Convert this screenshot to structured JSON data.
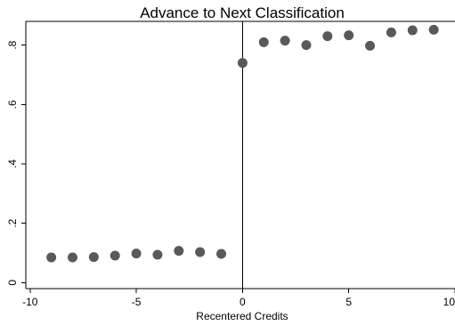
{
  "chart_data": {
    "type": "scatter",
    "title": "Advance to Next Classification",
    "xlabel": "Recentered Credits",
    "ylabel": "",
    "xlim": [
      -10.2,
      10
    ],
    "ylim": [
      -0.02,
      0.88
    ],
    "x_ticks": [
      {
        "value": -10,
        "label": "-10"
      },
      {
        "value": -5,
        "label": "-5"
      },
      {
        "value": 0,
        "label": "0"
      },
      {
        "value": 5,
        "label": "5"
      },
      {
        "value": 10,
        "label": "10"
      }
    ],
    "y_ticks": [
      {
        "value": 0,
        "label": "0"
      },
      {
        "value": 0.2,
        "label": ".2"
      },
      {
        "value": 0.4,
        "label": ".4"
      },
      {
        "value": 0.6,
        "label": ".6"
      },
      {
        "value": 0.8,
        "label": ".8"
      }
    ],
    "vertical_reference_line_x": 0,
    "marker_color": "#595959",
    "series": [
      {
        "x": [
          -9,
          -8,
          -7,
          -6,
          -5,
          -4,
          -3,
          -2,
          -1,
          0,
          1,
          2,
          3,
          4,
          5,
          6,
          7,
          8,
          9
        ],
        "y": [
          0.085,
          0.085,
          0.086,
          0.091,
          0.098,
          0.094,
          0.107,
          0.103,
          0.097,
          0.74,
          0.81,
          0.815,
          0.8,
          0.83,
          0.833,
          0.798,
          0.843,
          0.85,
          0.852
        ]
      }
    ]
  }
}
